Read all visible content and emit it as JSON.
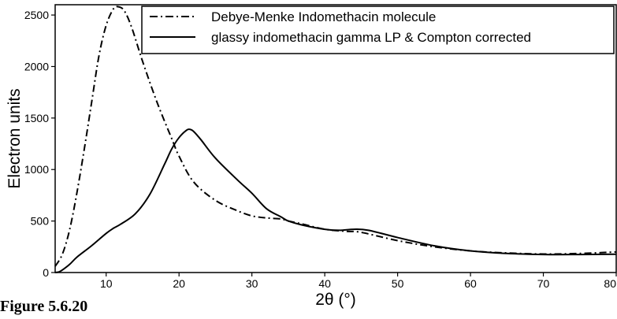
{
  "figure_label": "Figure 5.6.20",
  "chart_data": {
    "type": "line",
    "xlabel": "2θ (°)",
    "ylabel": "Electron units",
    "xlim": [
      3,
      80
    ],
    "ylim": [
      0,
      2600
    ],
    "xticks": [
      10,
      20,
      30,
      40,
      50,
      60,
      70,
      80
    ],
    "yticks": [
      0,
      500,
      1000,
      1500,
      2000,
      2500
    ],
    "grid": false,
    "legend_position": "top-right",
    "series": [
      {
        "name": "Debye-Menke Indomethacin molecule",
        "style": "dash-dot",
        "x": [
          3,
          4,
          5,
          6,
          7,
          8,
          9,
          10,
          11,
          11.7,
          12.5,
          13.5,
          15,
          17,
          19,
          20,
          22,
          25,
          28,
          30,
          32,
          34,
          35,
          37,
          40,
          43,
          45,
          50,
          55,
          60,
          65,
          70,
          75,
          80
        ],
        "y": [
          60,
          180,
          420,
          780,
          1200,
          1650,
          2100,
          2400,
          2560,
          2580,
          2540,
          2380,
          2050,
          1650,
          1300,
          1130,
          880,
          700,
          600,
          550,
          530,
          520,
          500,
          470,
          420,
          400,
          390,
          310,
          250,
          210,
          190,
          180,
          185,
          200
        ]
      },
      {
        "name": "glassy indomethacin gamma LP & Compton corrected",
        "style": "solid",
        "x": [
          3,
          3.5,
          4,
          5,
          6,
          8,
          10,
          11,
          12,
          14,
          16,
          18,
          19,
          20,
          21,
          21.5,
          22,
          23,
          25,
          28,
          30,
          32,
          34,
          35,
          37,
          40,
          42,
          44,
          46,
          50,
          55,
          60,
          65,
          70,
          75,
          80
        ],
        "y": [
          0,
          5,
          25,
          80,
          150,
          260,
          380,
          430,
          470,
          570,
          760,
          1050,
          1200,
          1310,
          1380,
          1390,
          1370,
          1290,
          1110,
          900,
          770,
          620,
          540,
          500,
          460,
          420,
          410,
          420,
          410,
          340,
          260,
          210,
          185,
          175,
          175,
          178
        ]
      }
    ]
  }
}
